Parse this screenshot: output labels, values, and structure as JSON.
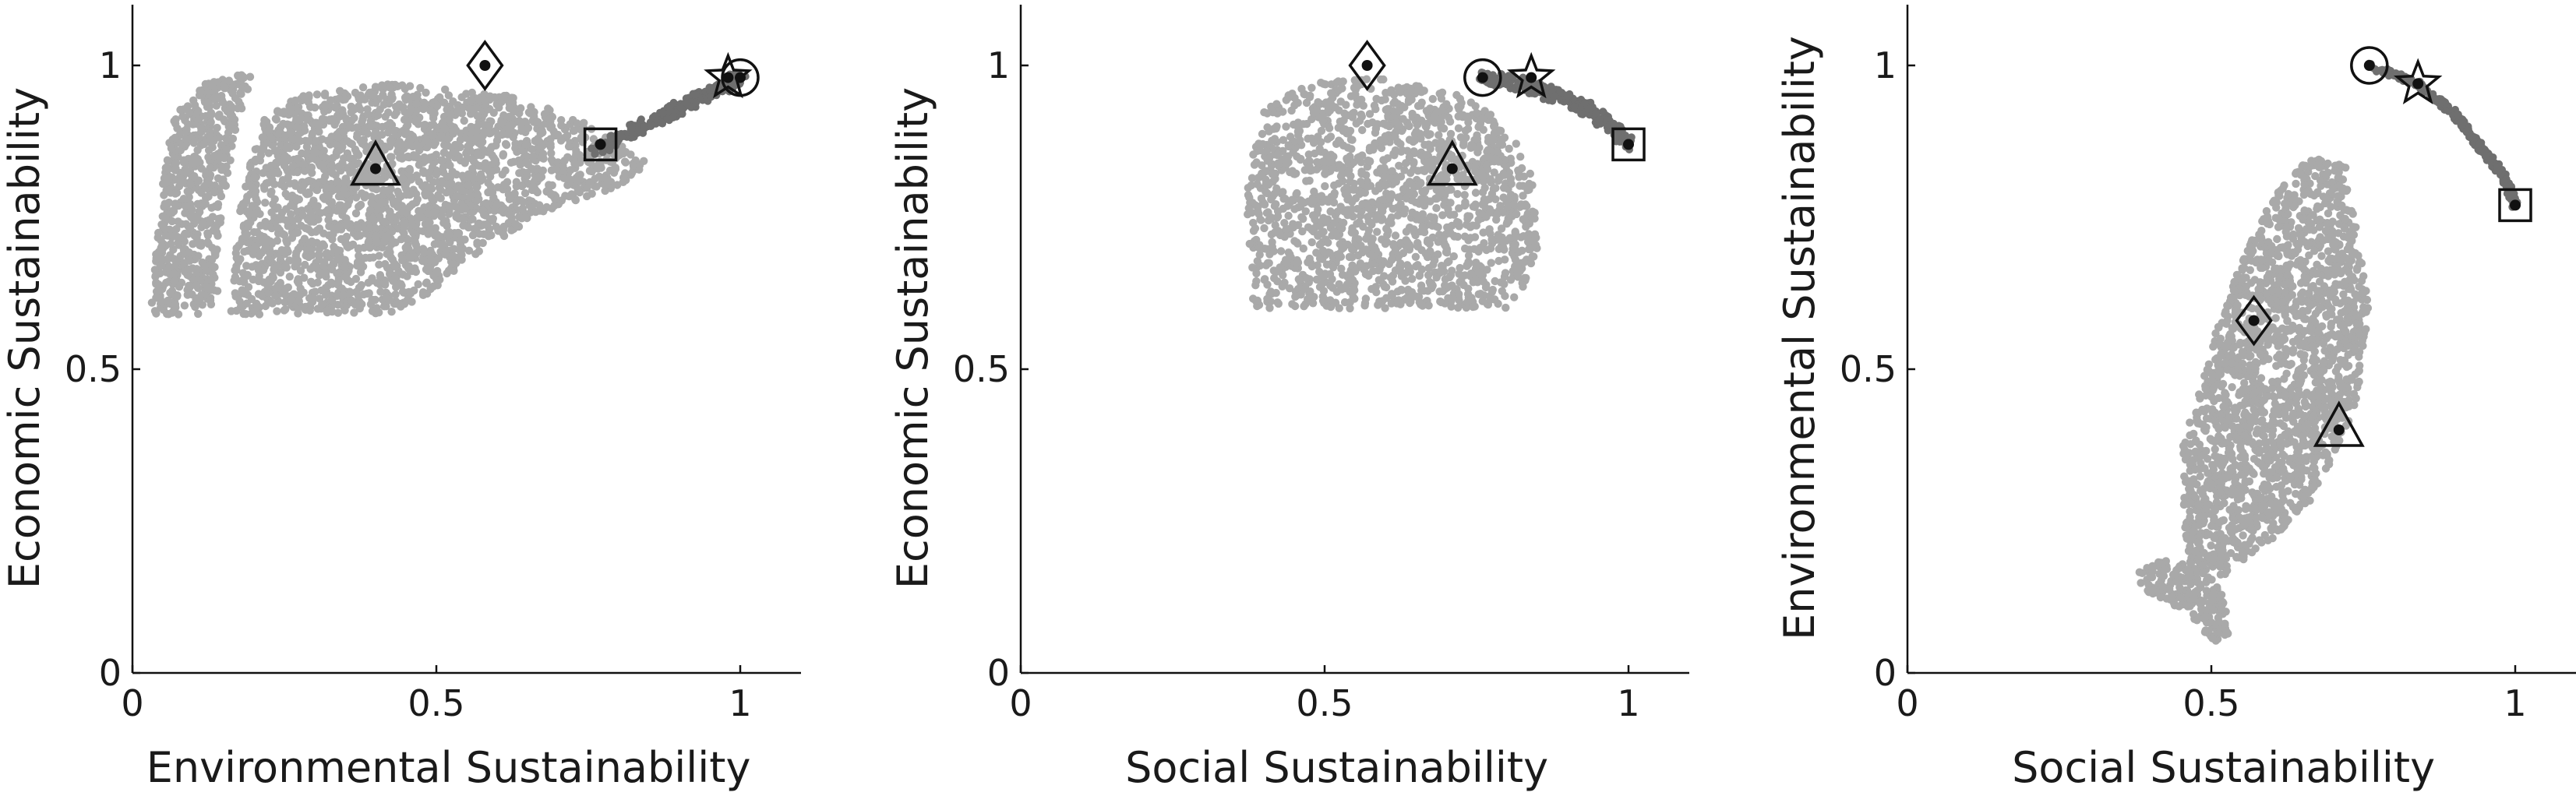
{
  "colors": {
    "cloud": "#a9a9a9",
    "front": "#6f6f6f",
    "marker": "#111111",
    "axis": "#111111",
    "background": "#ffffff"
  },
  "chart_data": [
    {
      "type": "scatter",
      "xlabel": "Environmental Sustainability",
      "ylabel": "Economic Sustainability",
      "xlim": [
        0,
        1.1
      ],
      "ylim": [
        0,
        1.1
      ],
      "x_ticks": [
        "0",
        "0.5",
        "1"
      ],
      "y_ticks": [
        "0",
        "0.5",
        "1"
      ],
      "grid": false,
      "point_clouds": [
        {
          "name": "",
          "color_key": "cloud",
          "shape": "polygon",
          "outline": [
            [
              0.03,
              0.59
            ],
            [
              0.05,
              0.82
            ],
            [
              0.07,
              0.92
            ],
            [
              0.12,
              0.97
            ],
            [
              0.2,
              0.99
            ],
            [
              0.17,
              0.9
            ],
            [
              0.14,
              0.7
            ],
            [
              0.14,
              0.59
            ]
          ]
        },
        {
          "name": "",
          "color_key": "cloud",
          "shape": "polygon",
          "outline": [
            [
              0.16,
              0.59
            ],
            [
              0.18,
              0.8
            ],
            [
              0.22,
              0.92
            ],
            [
              0.28,
              0.95
            ],
            [
              0.42,
              0.97
            ],
            [
              0.52,
              0.96
            ],
            [
              0.62,
              0.95
            ],
            [
              0.72,
              0.92
            ],
            [
              0.8,
              0.87
            ],
            [
              0.85,
              0.84
            ],
            [
              0.8,
              0.8
            ],
            [
              0.68,
              0.76
            ],
            [
              0.58,
              0.7
            ],
            [
              0.5,
              0.63
            ],
            [
              0.42,
              0.59
            ]
          ]
        },
        {
          "name": "",
          "color_key": "front",
          "shape": "band",
          "x": [
            0.76,
            0.84,
            0.9,
            0.95,
            0.98,
            1.0
          ],
          "y": [
            0.86,
            0.9,
            0.93,
            0.955,
            0.97,
            0.98
          ],
          "spread": 0.02
        }
      ],
      "highlighted_points": [
        {
          "marker": "diamond",
          "x": 0.58,
          "y": 1.0
        },
        {
          "marker": "triangle",
          "x": 0.4,
          "y": 0.83
        },
        {
          "marker": "square",
          "x": 0.77,
          "y": 0.87
        },
        {
          "marker": "star",
          "x": 0.98,
          "y": 0.98
        },
        {
          "marker": "circle",
          "x": 1.0,
          "y": 0.98
        }
      ]
    },
    {
      "type": "scatter",
      "xlabel": "Social Sustainability",
      "ylabel": "Economic Sustainability",
      "xlim": [
        0,
        1.1
      ],
      "ylim": [
        0,
        1.1
      ],
      "x_ticks": [
        "0",
        "0.5",
        "1"
      ],
      "y_ticks": [
        "0",
        "0.5",
        "1"
      ],
      "grid": false,
      "point_clouds": [
        {
          "name": "",
          "color_key": "cloud",
          "shape": "polygon",
          "outline": [
            [
              0.38,
              0.6
            ],
            [
              0.37,
              0.8
            ],
            [
              0.4,
              0.93
            ],
            [
              0.47,
              0.97
            ],
            [
              0.58,
              0.98
            ],
            [
              0.7,
              0.96
            ],
            [
              0.78,
              0.92
            ],
            [
              0.84,
              0.84
            ],
            [
              0.85,
              0.7
            ],
            [
              0.82,
              0.6
            ]
          ]
        },
        {
          "name": "",
          "color_key": "front",
          "shape": "band",
          "x": [
            0.76,
            0.82,
            0.88,
            0.93,
            0.97,
            1.0
          ],
          "y": [
            0.98,
            0.97,
            0.95,
            0.93,
            0.9,
            0.87
          ],
          "spread": 0.02
        }
      ],
      "highlighted_points": [
        {
          "marker": "diamond",
          "x": 0.57,
          "y": 1.0
        },
        {
          "marker": "triangle",
          "x": 0.71,
          "y": 0.83
        },
        {
          "marker": "circle",
          "x": 0.76,
          "y": 0.98
        },
        {
          "marker": "star",
          "x": 0.84,
          "y": 0.98
        },
        {
          "marker": "square",
          "x": 1.0,
          "y": 0.87
        }
      ]
    },
    {
      "type": "scatter",
      "xlabel": "Social Sustainability",
      "ylabel": "Environmental Sustainability",
      "xlim": [
        0,
        1.1
      ],
      "ylim": [
        0,
        1.1
      ],
      "x_ticks": [
        "0",
        "0.5",
        "1"
      ],
      "y_ticks": [
        "0",
        "0.5",
        "1"
      ],
      "grid": false,
      "point_clouds": [
        {
          "name": "",
          "color_key": "cloud",
          "shape": "polygon",
          "outline": [
            [
              0.46,
              0.18
            ],
            [
              0.45,
              0.36
            ],
            [
              0.5,
              0.55
            ],
            [
              0.55,
              0.68
            ],
            [
              0.6,
              0.78
            ],
            [
              0.66,
              0.85
            ],
            [
              0.72,
              0.84
            ],
            [
              0.74,
              0.72
            ],
            [
              0.76,
              0.6
            ],
            [
              0.74,
              0.45
            ],
            [
              0.68,
              0.3
            ],
            [
              0.6,
              0.22
            ],
            [
              0.52,
              0.16
            ]
          ]
        },
        {
          "name": "",
          "color_key": "cloud",
          "shape": "polygon",
          "outline": [
            [
              0.37,
              0.16
            ],
            [
              0.42,
              0.19
            ],
            [
              0.48,
              0.18
            ],
            [
              0.52,
              0.13
            ],
            [
              0.53,
              0.06
            ],
            [
              0.5,
              0.05
            ],
            [
              0.46,
              0.1
            ],
            [
              0.4,
              0.13
            ]
          ]
        },
        {
          "name": "",
          "color_key": "front",
          "shape": "band",
          "x": [
            0.76,
            0.84,
            0.9,
            0.94,
            0.98,
            1.0
          ],
          "y": [
            1.0,
            0.97,
            0.92,
            0.87,
            0.82,
            0.77
          ],
          "spread": 0.01
        }
      ],
      "highlighted_points": [
        {
          "marker": "circle",
          "x": 0.76,
          "y": 1.0
        },
        {
          "marker": "star",
          "x": 0.84,
          "y": 0.97
        },
        {
          "marker": "square",
          "x": 1.0,
          "y": 0.77
        },
        {
          "marker": "diamond",
          "x": 0.57,
          "y": 0.58
        },
        {
          "marker": "triangle",
          "x": 0.71,
          "y": 0.4
        }
      ]
    }
  ]
}
